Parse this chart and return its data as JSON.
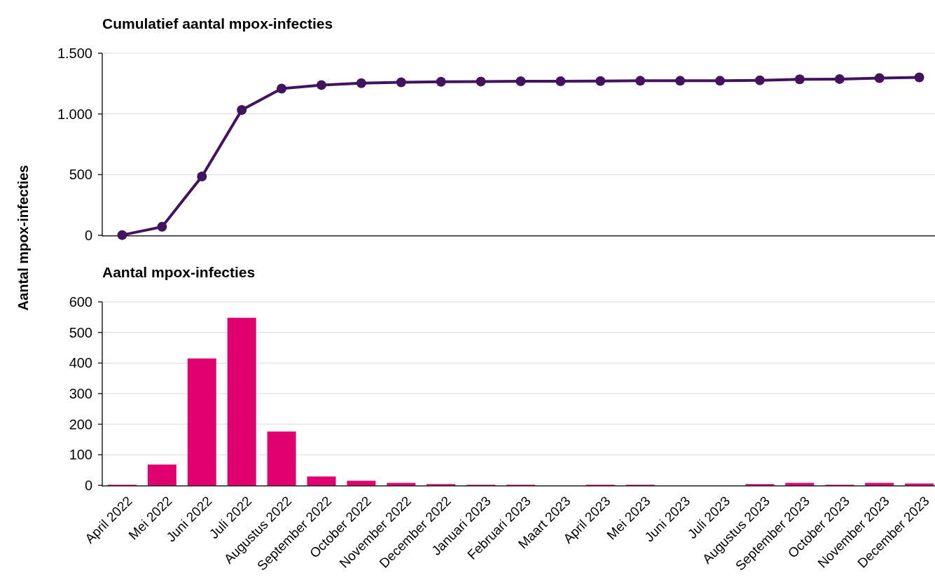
{
  "chart_data": [
    {
      "type": "line",
      "title": "Cumulatief aantal mpox-infecties",
      "categories": [
        null,
        null,
        null,
        null,
        null,
        null,
        null,
        null,
        null,
        null,
        null,
        null,
        null,
        null,
        null,
        null,
        null,
        null,
        null,
        null,
        null
      ],
      "series": [
        {
          "color": "#42145f",
          "values": [
            2,
            70,
            485,
            1033,
            1209,
            1238,
            1253,
            1261,
            1265,
            1267,
            1269,
            1269,
            1271,
            1273,
            1273,
            1273,
            1277,
            1285,
            1287,
            1295,
            1301
          ]
        }
      ],
      "ylim": [
        0,
        1500
      ],
      "yticks": [
        {
          "value": 0,
          "label": "0"
        },
        {
          "value": 500,
          "label": "500"
        },
        {
          "value": 1000,
          "label": "1.000"
        },
        {
          "value": 1500,
          "label": "1.500"
        }
      ],
      "grid": "y",
      "marker": "circle",
      "tick_labels": "y"
    },
    {
      "type": "bar",
      "title": "Aantal mpox-infecties",
      "ylabel": "Aantal mpox-infecties",
      "categories": [
        "April 2022",
        "Mei 2022",
        "Juni 2022",
        "Juli 2022",
        "Augustus 2022",
        "September 2022",
        "October 2022",
        "November 2022",
        "December 2022",
        "Januari 2023",
        "Februari 2023",
        "Maart 2023",
        "April 2023",
        "Mei 2023",
        "Juni 2023",
        "Juli 2023",
        "Augustus 2023",
        "September 2023",
        "October 2023",
        "November 2023",
        "December 2023"
      ],
      "series": [
        {
          "color": "#e1006f",
          "values": [
            2,
            68,
            415,
            548,
            176,
            29,
            15,
            8,
            4,
            2,
            2,
            0,
            2,
            2,
            0,
            0,
            4,
            8,
            2,
            8,
            6
          ]
        }
      ],
      "ylim": [
        0,
        600
      ],
      "yticks": [
        0,
        100,
        200,
        300,
        400,
        500,
        600
      ],
      "grid": "y"
    }
  ]
}
